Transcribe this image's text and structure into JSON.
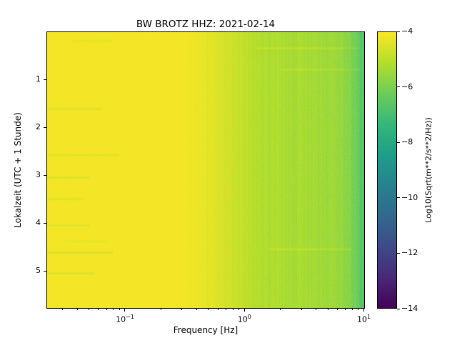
{
  "title": "BW BROTZ  HHZ: 2021-02-14",
  "xlabel": "Frequency [Hz]",
  "ylabel": "Lokalzeit (UTC + 1 Stunde)",
  "colorbar": {
    "label": "Log10(Sqrt(m**2/s**2/Hz))",
    "vmin": -14,
    "vmax": -4,
    "ticks": [
      -4,
      -6,
      -8,
      -10,
      -12,
      -14
    ],
    "colormap": "viridis"
  },
  "axes": {
    "x_scale": "log",
    "x_range_hz": [
      0.022,
      10.2
    ],
    "x_major_ticks": [
      {
        "value": 0.1,
        "base": "10",
        "exponent": "−1"
      },
      {
        "value": 1,
        "base": "10",
        "exponent": "0"
      },
      {
        "value": 10,
        "base": "10",
        "exponent": "1"
      }
    ],
    "y_range_hours": [
      0,
      5.79
    ],
    "y_major_ticks": [
      1,
      2,
      3,
      4,
      5
    ]
  },
  "chart_data": {
    "type": "heatmap",
    "description": "Daily seismic spectrogram: spectral amplitude vs frequency (log x-axis) and local time (y-axis, increasing downward). Field is nearly constant in time; dominant structure is frequency-dependent, bright yellow (~ -4.2) below 0.5 Hz grading to green (~ -5.4) from 1-7 Hz and teal (~ -7) near 10 Hz.",
    "x_units": "Hz",
    "y_units": "hours (UTC+1)",
    "value_units": "Log10(Sqrt(m**2/s**2/Hz))",
    "spectrum_profile": {
      "log10_freq": [
        -1.66,
        -0.5,
        -0.35,
        -0.2,
        -0.05,
        0.1,
        0.3,
        0.6,
        0.8,
        0.9,
        0.97,
        1.01
      ],
      "value": [
        -4.15,
        -4.15,
        -4.3,
        -4.55,
        -4.85,
        -5.1,
        -5.25,
        -5.35,
        -5.55,
        -5.9,
        -6.45,
        -7.0
      ]
    },
    "noise_amplitude": {
      "log10_freq": [
        -1.66,
        -0.5,
        -0.2,
        0.0,
        0.3,
        0.8,
        1.01
      ],
      "amplitude": [
        0.02,
        0.03,
        0.07,
        0.1,
        0.12,
        0.15,
        0.18
      ]
    },
    "time_streaks": [
      {
        "time": 0.2,
        "log10_freq_min": -1.45,
        "log10_freq_max": -1.1,
        "dv": -0.25
      },
      {
        "time": 0.35,
        "log10_freq_min": 0.1,
        "log10_freq_max": 0.97,
        "dv": 0.3
      },
      {
        "time": 0.8,
        "log10_freq_min": 0.3,
        "log10_freq_max": 0.97,
        "dv": 0.25
      },
      {
        "time": 1.62,
        "log10_freq_min": -1.66,
        "log10_freq_max": -1.2,
        "dv": -0.3
      },
      {
        "time": 2.58,
        "log10_freq_min": -1.66,
        "log10_freq_max": -1.05,
        "dv": -0.3
      },
      {
        "time": 3.05,
        "log10_freq_min": -1.66,
        "log10_freq_max": -1.3,
        "dv": -0.35
      },
      {
        "time": 3.5,
        "log10_freq_min": -1.66,
        "log10_freq_max": -1.35,
        "dv": -0.3
      },
      {
        "time": 4.05,
        "log10_freq_min": -1.66,
        "log10_freq_max": -1.3,
        "dv": -0.3
      },
      {
        "time": 4.38,
        "log10_freq_min": -1.5,
        "log10_freq_max": -1.15,
        "dv": -0.2
      },
      {
        "time": 4.55,
        "log10_freq_min": 0.2,
        "log10_freq_max": 0.9,
        "dv": 0.35
      },
      {
        "time": 4.62,
        "log10_freq_min": -1.66,
        "log10_freq_max": -1.1,
        "dv": -0.35
      },
      {
        "time": 5.05,
        "log10_freq_min": -1.66,
        "log10_freq_max": -1.25,
        "dv": -0.3
      }
    ],
    "streak_halfwidth_hours": 0.04
  }
}
